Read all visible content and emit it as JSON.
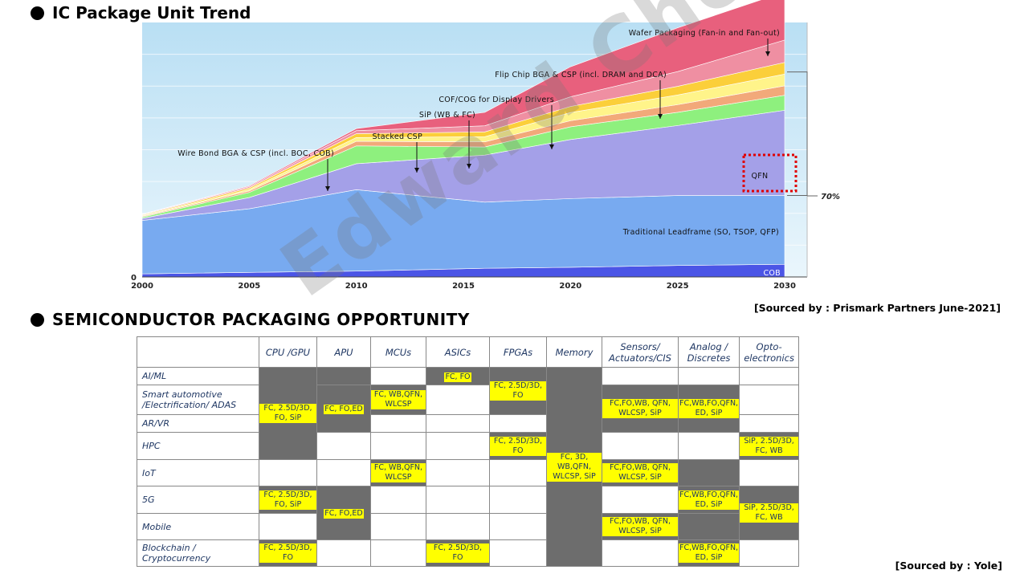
{
  "section1": {
    "title": "IC Package Unit Trend"
  },
  "section2": {
    "title": "SEMICONDUCTOR  PACKAGING OPPORTUNITY"
  },
  "source1": "[Sourced  by : Prismark Partners June-2021]",
  "source2": "[Sourced  by : Yole]",
  "watermark": "Edward Choi",
  "chart_data": {
    "type": "area",
    "title": "IC Package Unit Trend",
    "x": [
      2000,
      2005,
      2010,
      2016,
      2020,
      2025,
      2030
    ],
    "x_ticks": [
      "2000",
      "2005",
      "2010",
      "2015",
      "2020",
      "2025",
      "2030"
    ],
    "y_ticks": [
      "0"
    ],
    "ylim": [
      0,
      100
    ],
    "series": [
      {
        "name": "COB",
        "color": "#4b55e6",
        "values": [
          1.2,
          1.8,
          2.3,
          3.4,
          3.8,
          4.5,
          5.0
        ]
      },
      {
        "name": "Traditional Leadframe (SO, TSOP, QFP)",
        "color": "#78aaf0",
        "values": [
          21,
          25,
          32,
          26,
          27,
          27.5,
          27
        ]
      },
      {
        "name": "QFN",
        "color": "#a4a0e8",
        "values": [
          0.8,
          4.4,
          10.2,
          18.5,
          23.2,
          27.5,
          33.5
        ]
      },
      {
        "name": "Wire Bond BGA & CSP (incl. BOC, COB)",
        "color": "#8ef07e",
        "values": [
          0.5,
          2.0,
          7.0,
          3.2,
          5.0,
          5.2,
          5.9
        ]
      },
      {
        "name": "Stacked CSP",
        "color": "#f2a97a",
        "values": [
          0.3,
          0.6,
          1.8,
          2.0,
          2.4,
          3.0,
          3.7
        ]
      },
      {
        "name": "SiP (WB & FC)",
        "color": "#fff48a",
        "values": [
          0.3,
          0.6,
          1.5,
          2.0,
          3.2,
          3.8,
          4.6
        ]
      },
      {
        "name": "COF/COG for Display Drivers",
        "color": "#fbcf3a",
        "values": [
          0.3,
          0.6,
          1.5,
          1.9,
          2.4,
          3.4,
          4.6
        ]
      },
      {
        "name": "Flip Chip BGA & CSP (incl. DRAM and DCA)",
        "color": "#ef8fa2",
        "values": [
          0.2,
          0.5,
          1.2,
          2.4,
          3.8,
          5.8,
          8.8
        ]
      },
      {
        "name": "Wafer Packaging (Fan-in and Fan-out)",
        "color": "#e8607d",
        "values": [
          0.1,
          0.3,
          0.8,
          5.3,
          11.8,
          17.2,
          18.9
        ]
      }
    ],
    "annotations": [
      {
        "text": "Wafer Packaging (Fan-in and Fan-out)",
        "series": "Wafer Packaging (Fan-in and Fan-out)"
      },
      {
        "text": "Flip Chip BGA & CSP (incl. DRAM and DCA)",
        "series": "Flip Chip BGA & CSP (incl. DRAM and DCA)"
      },
      {
        "text": "COF/COG for Display Drivers",
        "series": "COF/COG for Display Drivers"
      },
      {
        "text": "SiP (WB & FC)",
        "series": "SiP (WB & FC)"
      },
      {
        "text": "Stacked CSP",
        "series": "Stacked CSP"
      },
      {
        "text": "Wire Bond BGA & CSP (incl. BOC, COB)",
        "series": "Wire Bond BGA & CSP (incl. BOC, COB)"
      },
      {
        "text": "QFN",
        "series": "QFN",
        "highlighted": true
      },
      {
        "text": "Traditional Leadframe (SO, TSOP, QFP)",
        "series": "Traditional Leadframe (SO, TSOP, QFP)"
      },
      {
        "text": "COB",
        "series": "COB"
      }
    ],
    "bracket_label": "70%"
  },
  "table": {
    "columns": [
      "CPU /GPU",
      "APU",
      "MCUs",
      "ASICs",
      "FPGAs",
      "Memory",
      "Sensors/ Actuators/CIS",
      "Analog / Discretes",
      "Opto- electronics"
    ],
    "rows": [
      "AI/ML",
      "Smart automotive /Electrification/ ADAS",
      "AR/VR",
      "HPC",
      "IoT",
      "5G",
      "Mobile",
      "Blockchain / Cryptocurrency"
    ],
    "cells": {
      "cpu_1": "FC, 2.5D/3D, FO, SiP",
      "cpu_5": "FC, 2.5D/3D, FO, SiP",
      "cpu_7": "FC, 2.5D/3D, FO",
      "apu_1": "FC, FO,ED",
      "apu_5": "FC, FO,ED",
      "mcu_1": "FC, WB,QFN, WLCSP",
      "mcu_4": "FC, WB,QFN, WLCSP",
      "asic_0": "FC, FO",
      "asic_7": "FC, 2.5D/3D, FO",
      "fpga_0": "FC, 2.5D/3D, FO",
      "fpga_3": "FC, 2.5D/3D, FO",
      "mem": "FC, 3D, WB,QFN, WLCSP, SiP",
      "sens_1": "FC,FO,WB, QFN, WLCSP, SiP",
      "sens_4": "FC,FO,WB, QFN, WLCSP, SiP",
      "sens_6": "FC,FO,WB, QFN, WLCSP, SiP",
      "ana_1": "FC,WB,FO,QFN, ED, SiP",
      "ana_5": "FC,WB,FO,QFN, ED, SiP",
      "ana_7": "FC,WB,FO,QFN, ED, SiP",
      "opto_3": "SiP, 2.5D/3D, FC, WB",
      "opto_5": "SiP, 2.5D/3D, FC, WB"
    }
  }
}
